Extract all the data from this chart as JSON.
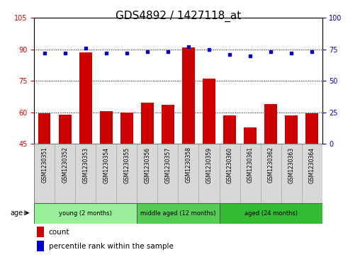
{
  "title": "GDS4892 / 1427118_at",
  "samples": [
    "GSM1230351",
    "GSM1230352",
    "GSM1230353",
    "GSM1230354",
    "GSM1230355",
    "GSM1230356",
    "GSM1230357",
    "GSM1230358",
    "GSM1230359",
    "GSM1230360",
    "GSM1230361",
    "GSM1230362",
    "GSM1230363",
    "GSM1230364"
  ],
  "counts": [
    59.5,
    59.0,
    88.5,
    60.5,
    60.0,
    64.5,
    63.5,
    91.0,
    76.0,
    58.5,
    53.0,
    64.0,
    58.5,
    59.5
  ],
  "percentiles": [
    72,
    72,
    76,
    72,
    72,
    73,
    73,
    77,
    75,
    71,
    70,
    73,
    72,
    73
  ],
  "ylim_left": [
    45,
    105
  ],
  "ylim_right": [
    0,
    100
  ],
  "yticks_left": [
    45,
    60,
    75,
    90,
    105
  ],
  "yticks_right": [
    0,
    25,
    50,
    75,
    100
  ],
  "bar_color": "#cc0000",
  "dot_color": "#0000cc",
  "grid_color": "#000000",
  "group_defs": [
    {
      "start": 0,
      "end": 5,
      "label": "young (2 months)",
      "color": "#99ee99"
    },
    {
      "start": 5,
      "end": 9,
      "label": "middle aged (12 months)",
      "color": "#55cc55"
    },
    {
      "start": 9,
      "end": 14,
      "label": "aged (24 months)",
      "color": "#33bb33"
    }
  ],
  "legend_items": [
    {
      "label": "count",
      "color": "#cc0000"
    },
    {
      "label": "percentile rank within the sample",
      "color": "#0000cc"
    }
  ],
  "title_fontsize": 11,
  "tick_fontsize": 7,
  "bar_width": 0.6,
  "sample_box_color": "#d8d8d8",
  "sample_box_edge": "#aaaaaa"
}
